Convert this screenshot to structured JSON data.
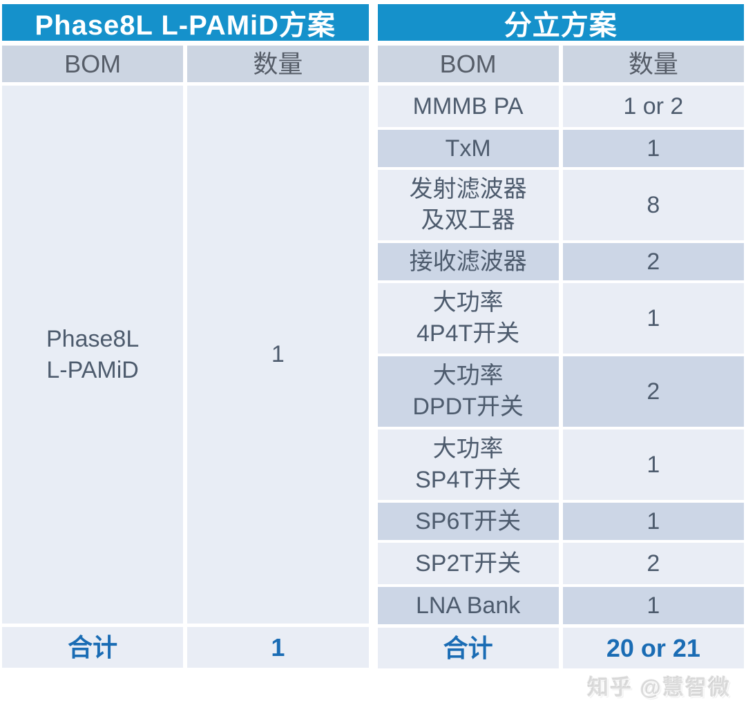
{
  "colors": {
    "header_blue": "#1591cb",
    "total_text_blue": "#1a6cb4",
    "header_row_bg": "#ccd5e2",
    "row_light_bg": "#e9edf5",
    "row_dark_bg": "#ccd6e6",
    "cell_text": "#4d5b6d"
  },
  "left_table": {
    "title": "Phase8L L-PAMiD方案",
    "columns": {
      "bom": "BOM",
      "qty": "数量"
    },
    "body": {
      "bom": "Phase8L\nL-PAMiD",
      "qty": "1"
    },
    "total": {
      "label": "合计",
      "qty": "1"
    }
  },
  "right_table": {
    "title": "分立方案",
    "columns": {
      "bom": "BOM",
      "qty": "数量"
    },
    "rows": [
      {
        "bom": "MMMB PA",
        "qty": "1 or 2"
      },
      {
        "bom": "TxM",
        "qty": "1"
      },
      {
        "bom": "发射滤波器\n及双工器",
        "qty": "8"
      },
      {
        "bom": "接收滤波器",
        "qty": "2"
      },
      {
        "bom": "大功率\n4P4T开关",
        "qty": "1"
      },
      {
        "bom": "大功率\nDPDT开关",
        "qty": "2"
      },
      {
        "bom": "大功率\nSP4T开关",
        "qty": "1"
      },
      {
        "bom": "SP6T开关",
        "qty": "1"
      },
      {
        "bom": "SP2T开关",
        "qty": "2"
      },
      {
        "bom": "LNA Bank",
        "qty": "1"
      }
    ],
    "total": {
      "label": "合计",
      "qty": "20 or 21"
    }
  },
  "watermark": "知乎 @慧智微",
  "chart_data": [
    {
      "type": "table",
      "title": "Phase8L L-PAMiD方案",
      "columns": [
        "BOM",
        "数量"
      ],
      "rows": [
        [
          "Phase8L L-PAMiD",
          "1"
        ]
      ],
      "total_row": [
        "合计",
        "1"
      ]
    },
    {
      "type": "table",
      "title": "分立方案",
      "columns": [
        "BOM",
        "数量"
      ],
      "rows": [
        [
          "MMMB PA",
          "1 or 2"
        ],
        [
          "TxM",
          "1"
        ],
        [
          "发射滤波器及双工器",
          "8"
        ],
        [
          "接收滤波器",
          "2"
        ],
        [
          "大功率4P4T开关",
          "1"
        ],
        [
          "大功率DPDT开关",
          "2"
        ],
        [
          "大功率SP4T开关",
          "1"
        ],
        [
          "SP6T开关",
          "1"
        ],
        [
          "SP2T开关",
          "2"
        ],
        [
          "LNA Bank",
          "1"
        ]
      ],
      "total_row": [
        "合计",
        "20 or 21"
      ]
    }
  ]
}
